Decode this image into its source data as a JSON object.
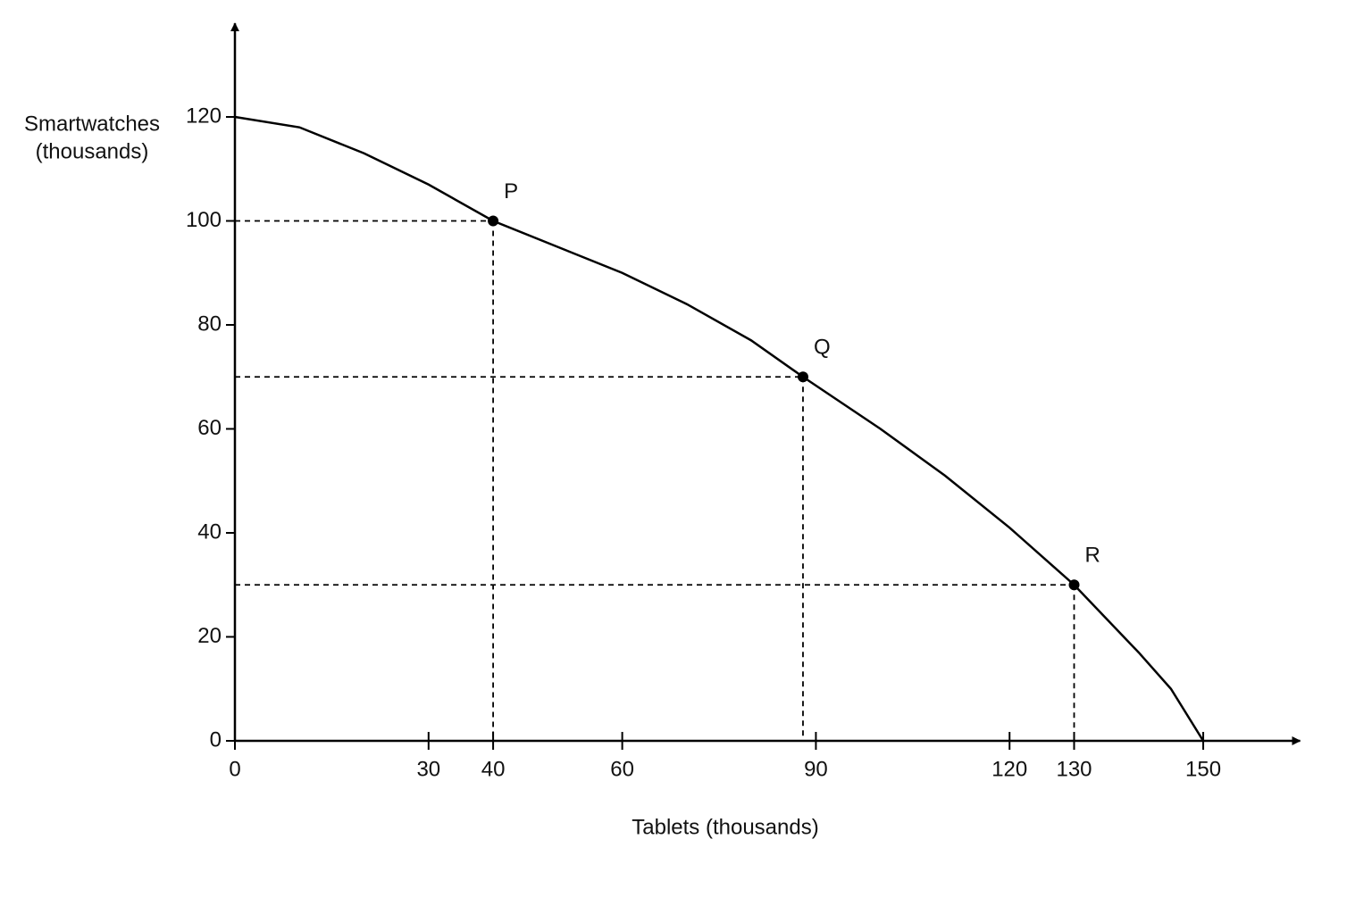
{
  "chart_data": {
    "type": "line",
    "xlabel": "Tablets (thousands)",
    "ylabel": [
      "Smartwatches",
      "(thousands)"
    ],
    "x": [
      0,
      10,
      20,
      30,
      40,
      50,
      60,
      70,
      80,
      88,
      100,
      110,
      120,
      130,
      140,
      145,
      150
    ],
    "series": [
      {
        "color": "#000000",
        "values": [
          120,
          118,
          113,
          107,
          100,
          95,
          90,
          84,
          77,
          70,
          60,
          51,
          41,
          30,
          17,
          10,
          0
        ]
      }
    ],
    "points": [
      {
        "label": "P",
        "x": 40,
        "y": 100
      },
      {
        "label": "Q",
        "x": 88,
        "y": 70
      },
      {
        "label": "R",
        "x": 130,
        "y": 30
      }
    ],
    "xlim": [
      0,
      165
    ],
    "ylim": [
      0,
      138
    ],
    "xticks": [
      0,
      30,
      40,
      60,
      90,
      120,
      130,
      150
    ],
    "yticks": [
      0,
      20,
      40,
      60,
      80,
      100,
      120
    ]
  }
}
